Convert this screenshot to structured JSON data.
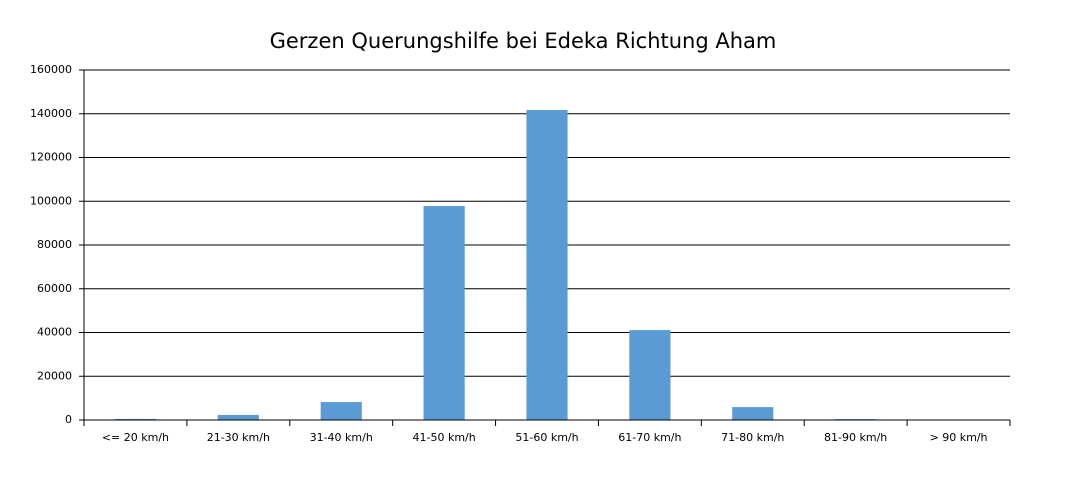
{
  "chart_data": {
    "type": "bar",
    "title": "Gerzen Querungshilfe bei Edeka Richtung Aham",
    "categories": [
      "<= 20 km/h",
      "21-30 km/h",
      "31-40 km/h",
      "41-50 km/h",
      "51-60 km/h",
      "61-70 km/h",
      "71-80 km/h",
      "81-90 km/h",
      "> 90 km/h"
    ],
    "values": [
      500,
      2300,
      8200,
      97800,
      141700,
      41100,
      5900,
      400,
      100
    ],
    "color": "#5b9bd5",
    "ylim": [
      0,
      160000
    ],
    "yticks": [
      0,
      20000,
      40000,
      60000,
      80000,
      100000,
      120000,
      140000,
      160000
    ],
    "grid": true
  }
}
